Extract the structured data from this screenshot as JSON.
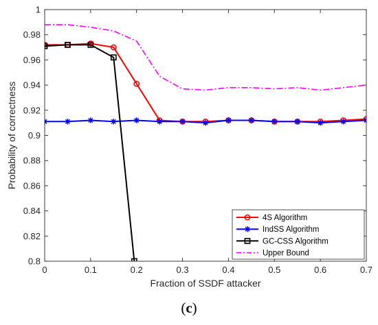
{
  "chart_data": {
    "type": "line",
    "title": "",
    "xlabel": "Fraction of SSDF attacker",
    "ylabel": "Probability of correctness",
    "xlim": [
      0,
      0.7
    ],
    "ylim": [
      0.8,
      1.0
    ],
    "xticks": [
      "0",
      "0.1",
      "0.2",
      "0.3",
      "0.4",
      "0.5",
      "0.6",
      "0.7"
    ],
    "yticks": [
      "0.8",
      "0.82",
      "0.84",
      "0.86",
      "0.88",
      "0.9",
      "0.92",
      "0.94",
      "0.96",
      "0.98",
      "1"
    ],
    "grid": false,
    "legend_position": "bottom-right",
    "series": [
      {
        "name": "4S Algorithm",
        "color": "#ff0000",
        "style": "solid",
        "marker": "circle",
        "x": [
          0,
          0.05,
          0.1,
          0.15,
          0.2,
          0.25,
          0.3,
          0.35,
          0.4,
          0.45,
          0.5,
          0.55,
          0.6,
          0.65,
          0.7
        ],
        "y": [
          0.972,
          0.972,
          0.973,
          0.97,
          0.941,
          0.912,
          0.911,
          0.911,
          0.912,
          0.912,
          0.911,
          0.911,
          0.911,
          0.912,
          0.913
        ]
      },
      {
        "name": "IndSS Algorithm",
        "color": "#0000ff",
        "style": "solid",
        "marker": "star",
        "x": [
          0,
          0.05,
          0.1,
          0.15,
          0.2,
          0.25,
          0.3,
          0.35,
          0.4,
          0.45,
          0.5,
          0.55,
          0.6,
          0.65,
          0.7
        ],
        "y": [
          0.911,
          0.911,
          0.912,
          0.911,
          0.912,
          0.911,
          0.911,
          0.91,
          0.912,
          0.912,
          0.911,
          0.911,
          0.91,
          0.911,
          0.912
        ]
      },
      {
        "name": "GC-CSS Algorithm",
        "color": "#000000",
        "style": "solid",
        "marker": "square",
        "x": [
          0,
          0.05,
          0.1,
          0.15,
          0.195
        ],
        "y": [
          0.971,
          0.972,
          0.972,
          0.962,
          0.8
        ]
      },
      {
        "name": "Upper Bound",
        "color": "#ff00ff",
        "style": "dashdot",
        "marker": "none",
        "x": [
          0,
          0.05,
          0.1,
          0.15,
          0.2,
          0.25,
          0.3,
          0.35,
          0.4,
          0.45,
          0.5,
          0.55,
          0.6,
          0.65,
          0.7
        ],
        "y": [
          0.988,
          0.988,
          0.986,
          0.983,
          0.975,
          0.947,
          0.937,
          0.936,
          0.938,
          0.938,
          0.937,
          0.938,
          0.936,
          0.938,
          0.94
        ]
      }
    ]
  },
  "caption": {
    "open": "(",
    "letter": "c",
    "close": ")"
  }
}
